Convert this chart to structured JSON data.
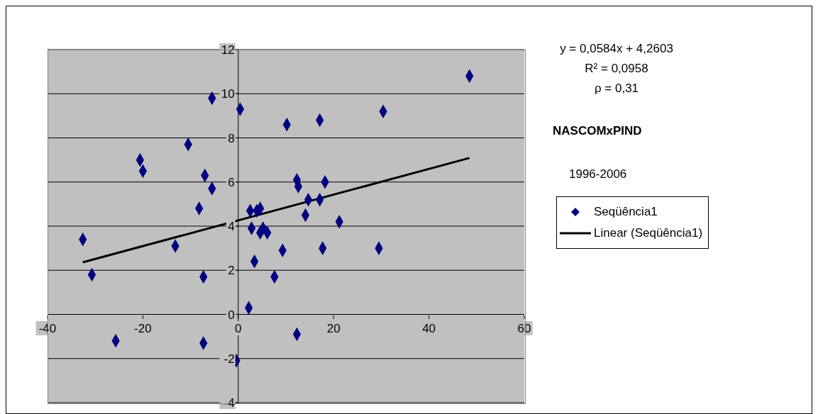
{
  "chart_data": {
    "type": "scatter",
    "title": "NASCOMxPIND",
    "subtitle": "1996-2006",
    "annotations": [
      "y = 0,0584x + 4,2603",
      "R² = 0,0958",
      "ρ = 0,31"
    ],
    "x": [
      -32.6,
      -30.7,
      -25.7,
      -20.6,
      -20.0,
      -13.2,
      -10.5,
      -8.2,
      -7.3,
      -7.3,
      -7.0,
      -5.5,
      -5.5,
      -0.4,
      0.4,
      2.2,
      2.5,
      2.8,
      3.4,
      3.9,
      4.6,
      4.6,
      5.2,
      6.1,
      7.6,
      9.3,
      10.2,
      12.3,
      12.6,
      12.3,
      14.1,
      14.7,
      17.1,
      17.1,
      17.7,
      18.2,
      21.2,
      29.5,
      30.4,
      48.5
    ],
    "series": [
      {
        "name": "Seqüência1",
        "color": "#000080",
        "marker": "diamond",
        "values": [
          3.4,
          1.8,
          -1.2,
          7.0,
          6.5,
          3.1,
          7.7,
          4.8,
          1.7,
          -1.3,
          6.3,
          5.7,
          9.8,
          -2.1,
          9.3,
          0.3,
          4.7,
          3.9,
          2.4,
          4.7,
          4.8,
          3.7,
          3.9,
          3.7,
          1.7,
          2.9,
          8.6,
          6.1,
          5.8,
          -0.9,
          4.5,
          5.2,
          8.8,
          5.2,
          3.0,
          6.0,
          4.2,
          3.0,
          9.2,
          10.8
        ]
      },
      {
        "name": "Linear (Seqüência1)",
        "type": "line",
        "color": "#000000",
        "x": [
          -32.6,
          48.5
        ],
        "values": [
          2.36,
          7.09
        ]
      }
    ],
    "xlim": [
      -40,
      60
    ],
    "xticks": [
      -40,
      -20,
      0,
      20,
      40,
      60
    ],
    "ylim": [
      -4,
      12
    ],
    "yticks": [
      -4,
      -2,
      0,
      2,
      4,
      6,
      8,
      10,
      12
    ],
    "grid": "y",
    "legend": "right"
  }
}
